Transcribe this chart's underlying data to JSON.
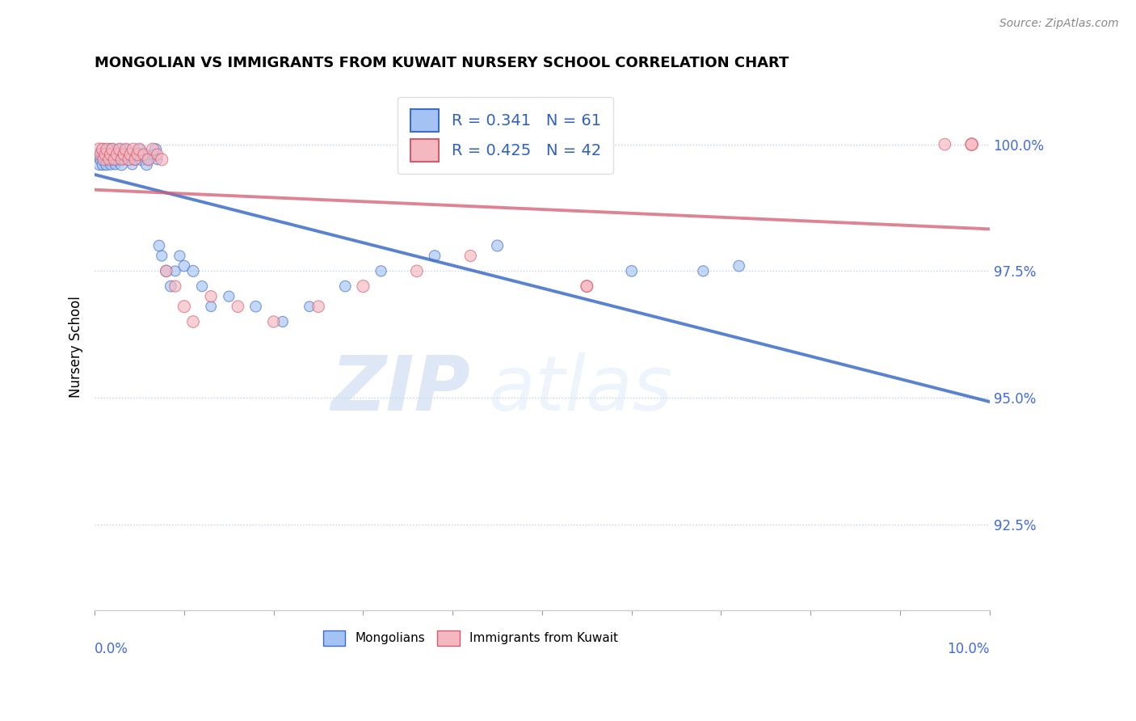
{
  "title": "MONGOLIAN VS IMMIGRANTS FROM KUWAIT NURSERY SCHOOL CORRELATION CHART",
  "source": "Source: ZipAtlas.com",
  "ylabel": "Nursery School",
  "ytick_labels": [
    "92.5%",
    "95.0%",
    "97.5%",
    "100.0%"
  ],
  "ytick_values": [
    0.925,
    0.95,
    0.975,
    1.0
  ],
  "xlim": [
    0.0,
    10.0
  ],
  "ylim": [
    0.908,
    1.012
  ],
  "legend_blue_r": "R = 0.341",
  "legend_blue_n": "N = 61",
  "legend_pink_r": "R = 0.425",
  "legend_pink_n": "N = 42",
  "blue_color": "#a4c2f4",
  "pink_color": "#f4b8c1",
  "trendline_blue": "#3c6dc8",
  "trendline_pink": "#d45a6e",
  "watermark_zip": "ZIP",
  "watermark_atlas": "atlas",
  "mongolian_x": [
    0.05,
    0.05,
    0.07,
    0.08,
    0.09,
    0.1,
    0.1,
    0.12,
    0.13,
    0.14,
    0.15,
    0.16,
    0.17,
    0.18,
    0.18,
    0.2,
    0.2,
    0.22,
    0.23,
    0.25,
    0.27,
    0.28,
    0.3,
    0.3,
    0.32,
    0.33,
    0.35,
    0.38,
    0.4,
    0.42,
    0.45,
    0.48,
    0.5,
    0.52,
    0.55,
    0.58,
    0.6,
    0.65,
    0.68,
    0.7,
    0.72,
    0.75,
    0.8,
    0.85,
    0.9,
    0.95,
    1.0,
    1.1,
    1.2,
    1.3,
    1.5,
    1.8,
    2.1,
    2.4,
    2.8,
    3.2,
    3.8,
    4.5,
    6.0,
    6.8,
    7.2
  ],
  "mongolian_y": [
    0.998,
    0.996,
    0.997,
    0.998,
    0.996,
    0.999,
    0.998,
    0.997,
    0.996,
    0.998,
    0.998,
    0.997,
    0.999,
    0.998,
    0.996,
    0.997,
    0.999,
    0.998,
    0.996,
    0.997,
    0.998,
    0.999,
    0.998,
    0.996,
    0.997,
    0.998,
    0.999,
    0.997,
    0.998,
    0.996,
    0.997,
    0.998,
    0.999,
    0.997,
    0.998,
    0.996,
    0.997,
    0.998,
    0.999,
    0.997,
    0.98,
    0.978,
    0.975,
    0.972,
    0.975,
    0.978,
    0.976,
    0.975,
    0.972,
    0.968,
    0.97,
    0.968,
    0.965,
    0.968,
    0.972,
    0.975,
    0.978,
    0.98,
    0.975,
    0.975,
    0.976
  ],
  "mongolian_sizes": [
    120,
    80,
    90,
    70,
    85,
    95,
    110,
    75,
    85,
    80,
    90,
    70,
    95,
    80,
    75,
    90,
    85,
    80,
    70,
    90,
    75,
    85,
    80,
    90,
    70,
    85,
    75,
    80,
    90,
    70,
    85,
    80,
    75,
    90,
    70,
    85,
    80,
    75,
    90,
    70,
    80,
    75,
    85,
    80,
    70,
    75,
    80,
    85,
    75,
    70,
    75,
    80,
    75,
    70,
    80,
    75,
    80,
    85,
    80,
    75,
    80
  ],
  "kuwait_x": [
    0.05,
    0.07,
    0.09,
    0.1,
    0.12,
    0.14,
    0.16,
    0.18,
    0.2,
    0.22,
    0.25,
    0.28,
    0.3,
    0.33,
    0.35,
    0.38,
    0.4,
    0.43,
    0.45,
    0.48,
    0.5,
    0.55,
    0.6,
    0.65,
    0.7,
    0.75,
    0.8,
    0.9,
    1.0,
    1.1,
    1.3,
    1.6,
    2.0,
    2.5,
    3.0,
    3.6,
    4.2,
    5.5,
    9.5,
    9.8,
    5.5,
    9.8
  ],
  "kuwait_y": [
    0.999,
    0.998,
    0.999,
    0.997,
    0.998,
    0.999,
    0.997,
    0.998,
    0.999,
    0.997,
    0.998,
    0.999,
    0.997,
    0.998,
    0.999,
    0.997,
    0.998,
    0.999,
    0.997,
    0.998,
    0.999,
    0.998,
    0.997,
    0.999,
    0.998,
    0.997,
    0.975,
    0.972,
    0.968,
    0.965,
    0.97,
    0.968,
    0.965,
    0.968,
    0.972,
    0.975,
    0.978,
    0.972,
    1.0,
    1.0,
    0.972,
    1.0
  ],
  "kuwait_sizes": [
    100,
    90,
    95,
    85,
    90,
    95,
    80,
    90,
    95,
    85,
    90,
    95,
    80,
    90,
    95,
    85,
    90,
    95,
    80,
    90,
    95,
    85,
    90,
    95,
    80,
    90,
    85,
    80,
    90,
    85,
    80,
    85,
    80,
    85,
    90,
    85,
    80,
    90,
    85,
    100,
    80,
    85
  ]
}
